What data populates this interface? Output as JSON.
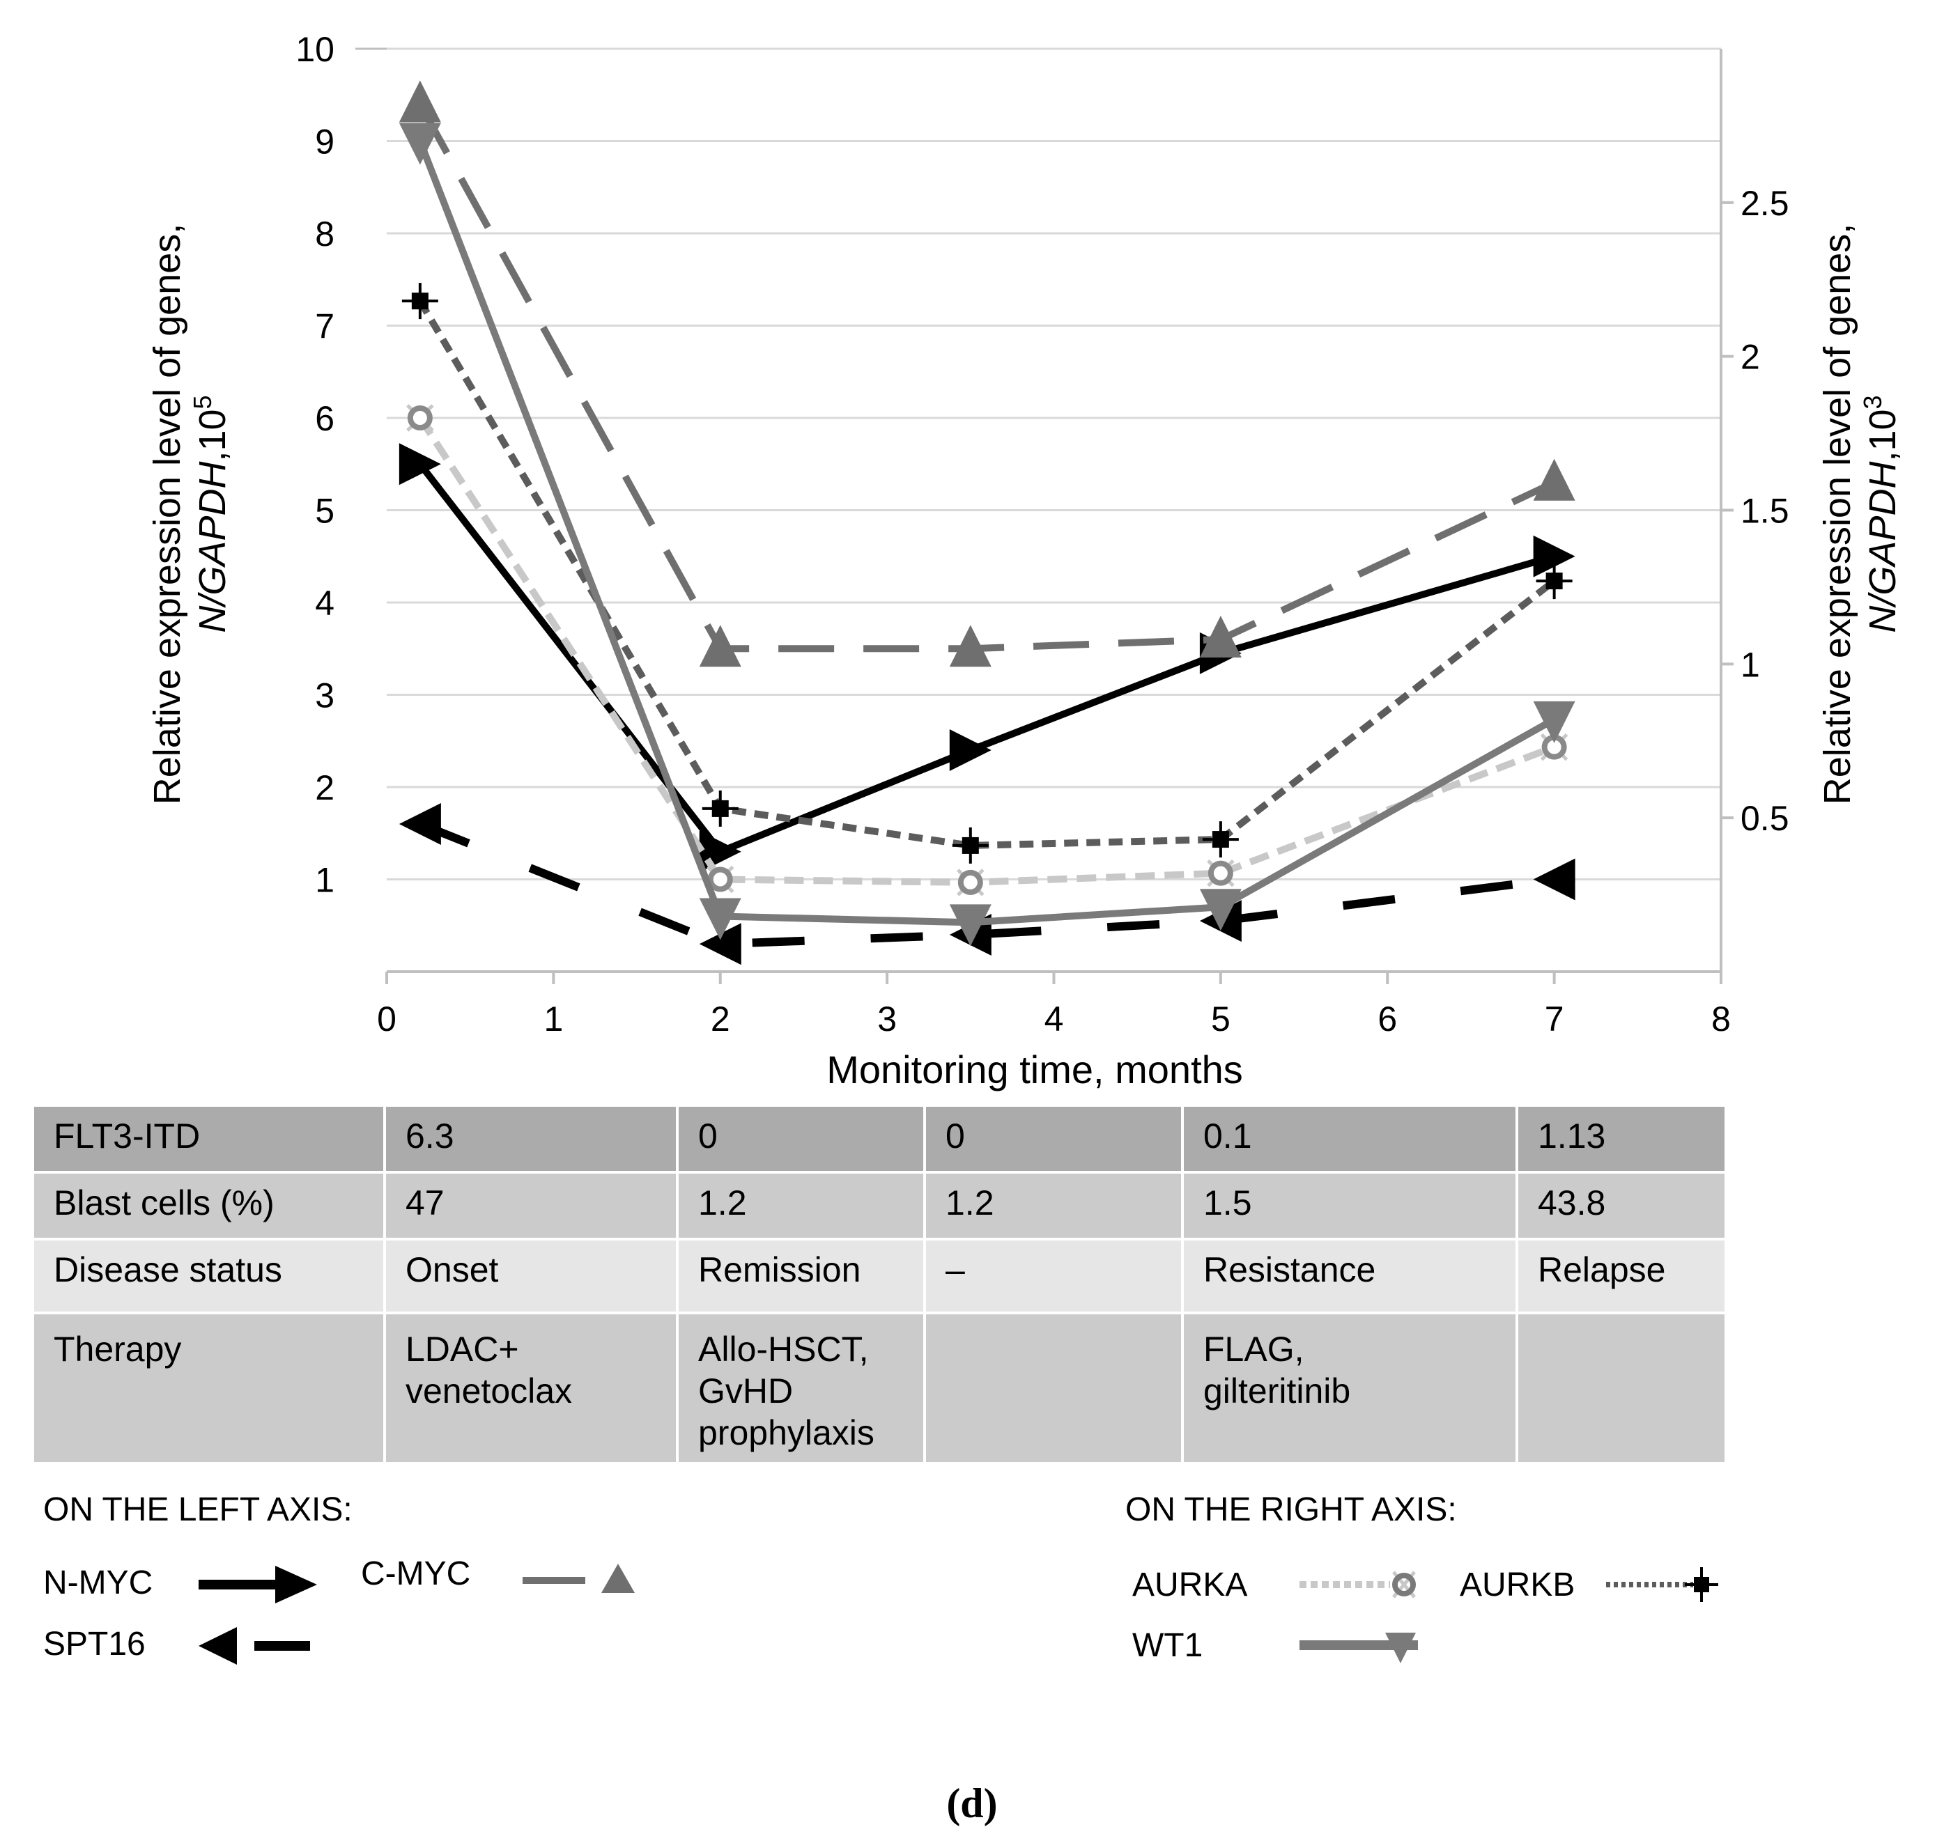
{
  "chart_data": {
    "type": "line",
    "xlabel": "Monitoring time, months",
    "ylabel_left": "Relative expression level of genes,",
    "ylabel_left_units": {
      "prefix": "N/GAPDH",
      "base": ",10",
      "exp": "5"
    },
    "ylabel_right": "Relative expression level of genes,",
    "ylabel_right_units": {
      "prefix": "N/GAPDH",
      "base": ",10",
      "exp": "3"
    },
    "xlim": [
      0,
      8
    ],
    "ylim_left": [
      0,
      10
    ],
    "ylim_right": [
      0,
      3
    ],
    "x_ticks": [
      "0",
      "1",
      "2",
      "3",
      "4",
      "5",
      "6",
      "7",
      "8"
    ],
    "y_ticks_left": [
      "1",
      "2",
      "3",
      "4",
      "5",
      "6",
      "7",
      "8",
      "9",
      "10"
    ],
    "y_ticks_right": [
      "0.5",
      "1",
      "1.5",
      "2",
      "2.5"
    ],
    "grid": true,
    "series": [
      {
        "name": "N-MYC",
        "axis": "left",
        "x": [
          0.2,
          2,
          3.5,
          5,
          7
        ],
        "values": [
          5.5,
          1.3,
          2.4,
          3.45,
          4.5
        ],
        "color": "#000000",
        "dash": "",
        "marker": "triangle-right",
        "width": 10
      },
      {
        "name": "C-MYC",
        "axis": "left",
        "x": [
          0.2,
          2,
          3.5,
          5,
          7
        ],
        "values": [
          9.4,
          3.5,
          3.5,
          3.6,
          5.3
        ],
        "color": "#6f6f6f",
        "dash": "80,42",
        "marker": "triangle-up",
        "width": 10
      },
      {
        "name": "SPT16",
        "axis": "left",
        "x": [
          0.2,
          2,
          3.5,
          5,
          7
        ],
        "values": [
          1.6,
          0.3,
          0.4,
          0.55,
          1.0
        ],
        "color": "#000000",
        "dash": "75,95",
        "marker": "triangle-left",
        "width": 12
      },
      {
        "name": "AURKA",
        "axis": "right",
        "x": [
          0.2,
          2,
          3.5,
          5,
          7
        ],
        "values": [
          1.8,
          0.3,
          0.29,
          0.32,
          0.73
        ],
        "color": "#c8c8c8",
        "dash": "28,14",
        "marker": "ring",
        "width": 10
      },
      {
        "name": "AURKB",
        "axis": "right",
        "x": [
          0.2,
          2,
          3.5,
          5,
          7
        ],
        "values": [
          2.18,
          0.53,
          0.41,
          0.43,
          1.27
        ],
        "color": "#5c5c5c",
        "dash": "20,12",
        "marker": "square-cross",
        "width": 10
      },
      {
        "name": "WT1",
        "axis": "right",
        "x": [
          0.2,
          2,
          3.5,
          5,
          7
        ],
        "values": [
          2.7,
          0.18,
          0.16,
          0.21,
          0.82
        ],
        "color": "#7a7a7a",
        "dash": "",
        "marker": "triangle-down",
        "width": 10
      }
    ],
    "legend": {
      "left_title": "ON THE LEFT AXIS:",
      "right_title": "ON THE RIGHT AXIS:",
      "left_items": [
        "N-MYC",
        "C-MYC",
        "SPT16"
      ],
      "right_items": [
        "AURKA",
        "AURKB",
        "WT1"
      ]
    }
  },
  "table": {
    "rows": [
      {
        "label": "FLT3-ITD",
        "cells": [
          "6.3",
          "0",
          "0",
          "0.1",
          "1.13"
        ]
      },
      {
        "label": "Blast cells (%)",
        "cells": [
          "47",
          "1.2",
          "1.2",
          "1.5",
          "43.8"
        ]
      },
      {
        "label": "Disease status",
        "cells": [
          "Onset",
          "Remission",
          "–",
          "Resistance",
          "Relapse"
        ]
      },
      {
        "label": "Therapy",
        "cells": [
          "LDAC+\nvenetoclax",
          "Allo-HSCT,\nGvHD\nprophylaxis",
          "",
          "FLAG,\ngilteritinib",
          ""
        ]
      }
    ]
  },
  "panel_label": "(d)"
}
